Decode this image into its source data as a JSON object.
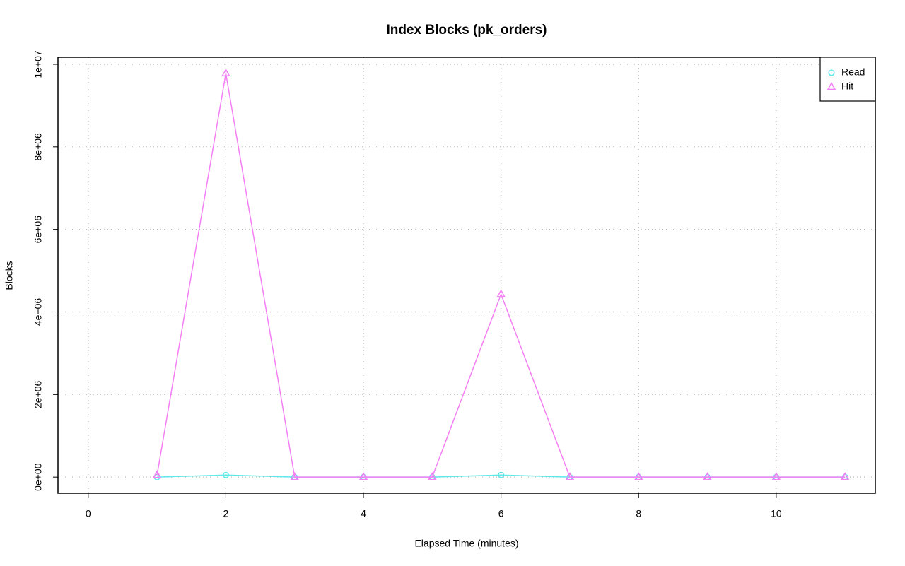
{
  "chart_data": {
    "type": "line",
    "title": "Index Blocks (pk_orders)",
    "x_label": "Elapsed Time (minutes)",
    "y_label": "Blocks",
    "x": [
      1,
      2,
      3,
      4,
      5,
      6,
      7,
      8,
      9,
      10,
      11
    ],
    "series": [
      {
        "name": "Read",
        "color": "#5ee8e8",
        "marker": "circle",
        "values": [
          0,
          50000,
          0,
          0,
          0,
          50000,
          0,
          0,
          0,
          0,
          0
        ]
      },
      {
        "name": "Hit",
        "color": "#f47ff4",
        "marker": "triangle",
        "values": [
          50000,
          9780000,
          0,
          0,
          0,
          4430000,
          0,
          0,
          0,
          0,
          0
        ]
      }
    ],
    "xlim": [
      -0.44,
      11.44
    ],
    "xticks": [
      0,
      2,
      4,
      6,
      8,
      10
    ],
    "ylim": [
      -391000,
      10171000
    ],
    "yticks": [
      {
        "value": 0,
        "label": "0e+00"
      },
      {
        "value": 2000000,
        "label": "2e+06"
      },
      {
        "value": 4000000,
        "label": "4e+06"
      },
      {
        "value": 6000000,
        "label": "6e+06"
      },
      {
        "value": 8000000,
        "label": "8e+06"
      },
      {
        "value": 10000000,
        "label": "1e+07"
      }
    ],
    "grid": true,
    "legend": "topright"
  }
}
